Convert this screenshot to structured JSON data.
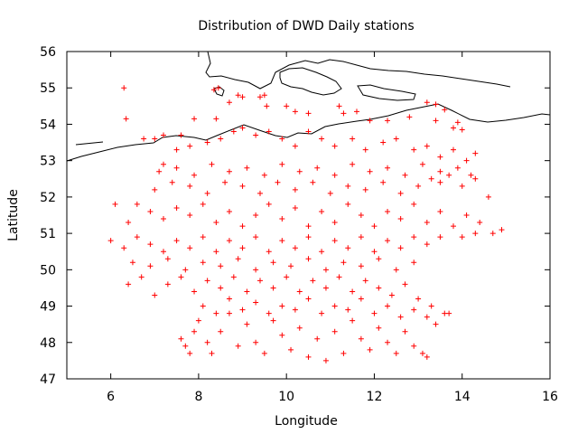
{
  "chart_data": {
    "type": "scatter",
    "title": "Distribution of DWD Daily stations",
    "xlabel": "Longitude",
    "ylabel": "Latitude",
    "xlim": [
      5,
      16
    ],
    "ylim": [
      47,
      56
    ],
    "xticks": [
      6,
      8,
      10,
      12,
      14,
      16
    ],
    "yticks": [
      47,
      48,
      49,
      50,
      51,
      52,
      53,
      54,
      55,
      56
    ],
    "marker": "plus",
    "marker_color": "#ff0000",
    "grid": false,
    "legend": "none",
    "series": [
      {
        "points": [
          [
            6.3,
            55.0
          ],
          [
            6.35,
            54.15
          ],
          [
            7.0,
            53.6
          ],
          [
            6.75,
            53.6
          ],
          [
            7.2,
            53.7
          ],
          [
            7.6,
            53.7
          ],
          [
            7.9,
            54.15
          ],
          [
            8.4,
            54.15
          ],
          [
            8.35,
            54.95
          ],
          [
            8.45,
            55.0
          ],
          [
            8.7,
            54.6
          ],
          [
            8.9,
            54.8
          ],
          [
            9.0,
            54.75
          ],
          [
            9.4,
            54.75
          ],
          [
            9.5,
            54.8
          ],
          [
            9.55,
            54.5
          ],
          [
            10.0,
            54.5
          ],
          [
            10.2,
            54.35
          ],
          [
            10.5,
            54.3
          ],
          [
            11.2,
            54.5
          ],
          [
            11.3,
            54.3
          ],
          [
            11.6,
            54.35
          ],
          [
            11.9,
            54.1
          ],
          [
            12.3,
            54.1
          ],
          [
            12.8,
            54.2
          ],
          [
            13.2,
            54.6
          ],
          [
            13.4,
            54.55
          ],
          [
            13.6,
            54.4
          ],
          [
            13.4,
            54.1
          ],
          [
            13.8,
            53.9
          ],
          [
            14.0,
            53.85
          ],
          [
            13.9,
            54.05
          ],
          [
            7.2,
            52.9
          ],
          [
            7.5,
            53.3
          ],
          [
            7.8,
            53.4
          ],
          [
            8.2,
            53.5
          ],
          [
            8.5,
            53.6
          ],
          [
            8.8,
            53.8
          ],
          [
            9.0,
            53.9
          ],
          [
            9.3,
            53.7
          ],
          [
            9.6,
            53.8
          ],
          [
            9.9,
            53.6
          ],
          [
            10.2,
            53.4
          ],
          [
            10.5,
            53.8
          ],
          [
            10.8,
            53.6
          ],
          [
            11.1,
            53.4
          ],
          [
            11.5,
            53.6
          ],
          [
            11.8,
            53.3
          ],
          [
            12.2,
            53.5
          ],
          [
            12.5,
            53.6
          ],
          [
            12.9,
            53.3
          ],
          [
            13.2,
            53.4
          ],
          [
            13.5,
            53.1
          ],
          [
            13.8,
            53.3
          ],
          [
            14.1,
            53.0
          ],
          [
            14.3,
            53.2
          ],
          [
            6.1,
            51.8
          ],
          [
            6.4,
            51.3
          ],
          [
            6.6,
            51.8
          ],
          [
            6.9,
            51.6
          ],
          [
            7.2,
            51.4
          ],
          [
            7.5,
            51.7
          ],
          [
            7.8,
            51.5
          ],
          [
            8.1,
            51.8
          ],
          [
            8.4,
            51.3
          ],
          [
            8.7,
            51.6
          ],
          [
            9.0,
            51.2
          ],
          [
            9.3,
            51.5
          ],
          [
            9.6,
            51.8
          ],
          [
            9.9,
            51.4
          ],
          [
            10.2,
            51.7
          ],
          [
            10.5,
            51.2
          ],
          [
            10.8,
            51.6
          ],
          [
            11.1,
            51.3
          ],
          [
            11.4,
            51.8
          ],
          [
            11.7,
            51.5
          ],
          [
            12.0,
            51.2
          ],
          [
            12.3,
            51.6
          ],
          [
            12.6,
            51.4
          ],
          [
            12.9,
            51.8
          ],
          [
            13.2,
            51.3
          ],
          [
            13.5,
            51.6
          ],
          [
            13.8,
            51.2
          ],
          [
            14.1,
            51.5
          ],
          [
            14.4,
            51.3
          ],
          [
            14.7,
            51.0
          ],
          [
            14.9,
            51.1
          ],
          [
            7.0,
            52.2
          ],
          [
            7.4,
            52.4
          ],
          [
            7.8,
            52.3
          ],
          [
            8.2,
            52.1
          ],
          [
            8.6,
            52.4
          ],
          [
            9.0,
            52.3
          ],
          [
            9.4,
            52.1
          ],
          [
            9.8,
            52.4
          ],
          [
            10.2,
            52.2
          ],
          [
            10.6,
            52.4
          ],
          [
            11.0,
            52.1
          ],
          [
            11.4,
            52.3
          ],
          [
            11.8,
            52.2
          ],
          [
            12.2,
            52.4
          ],
          [
            12.6,
            52.1
          ],
          [
            13.0,
            52.3
          ],
          [
            13.3,
            52.5
          ],
          [
            13.5,
            52.4
          ],
          [
            13.7,
            52.6
          ],
          [
            14.0,
            52.3
          ],
          [
            14.3,
            52.5
          ],
          [
            14.6,
            52.0
          ],
          [
            6.0,
            50.8
          ],
          [
            6.3,
            50.6
          ],
          [
            6.6,
            50.9
          ],
          [
            6.9,
            50.7
          ],
          [
            7.2,
            50.5
          ],
          [
            7.5,
            50.8
          ],
          [
            7.8,
            50.6
          ],
          [
            8.1,
            50.9
          ],
          [
            8.4,
            50.5
          ],
          [
            8.7,
            50.8
          ],
          [
            9.0,
            50.6
          ],
          [
            9.3,
            50.9
          ],
          [
            9.6,
            50.5
          ],
          [
            9.9,
            50.8
          ],
          [
            10.2,
            50.6
          ],
          [
            10.5,
            50.9
          ],
          [
            10.8,
            50.5
          ],
          [
            11.1,
            50.8
          ],
          [
            11.4,
            50.6
          ],
          [
            11.7,
            50.9
          ],
          [
            12.0,
            50.5
          ],
          [
            12.3,
            50.8
          ],
          [
            12.6,
            50.6
          ],
          [
            12.9,
            50.9
          ],
          [
            13.2,
            50.7
          ],
          [
            13.5,
            50.9
          ],
          [
            14.0,
            50.9
          ],
          [
            14.3,
            51.0
          ],
          [
            6.4,
            49.6
          ],
          [
            6.7,
            49.8
          ],
          [
            7.0,
            49.3
          ],
          [
            7.3,
            49.6
          ],
          [
            7.6,
            49.8
          ],
          [
            7.9,
            49.4
          ],
          [
            8.2,
            49.7
          ],
          [
            8.5,
            49.5
          ],
          [
            8.8,
            49.8
          ],
          [
            9.1,
            49.4
          ],
          [
            9.4,
            49.7
          ],
          [
            9.7,
            49.5
          ],
          [
            10.0,
            49.8
          ],
          [
            10.3,
            49.4
          ],
          [
            10.6,
            49.7
          ],
          [
            10.9,
            49.5
          ],
          [
            11.2,
            49.8
          ],
          [
            11.5,
            49.4
          ],
          [
            11.8,
            49.7
          ],
          [
            12.1,
            49.5
          ],
          [
            12.4,
            49.3
          ],
          [
            12.7,
            49.6
          ],
          [
            13.0,
            49.2
          ],
          [
            13.3,
            49.0
          ],
          [
            13.6,
            48.8
          ],
          [
            13.7,
            48.8
          ],
          [
            6.5,
            50.2
          ],
          [
            6.9,
            50.1
          ],
          [
            7.3,
            50.3
          ],
          [
            7.7,
            50.0
          ],
          [
            8.1,
            50.2
          ],
          [
            8.5,
            50.1
          ],
          [
            8.9,
            50.3
          ],
          [
            9.3,
            50.0
          ],
          [
            9.7,
            50.2
          ],
          [
            10.1,
            50.1
          ],
          [
            10.5,
            50.3
          ],
          [
            10.9,
            50.0
          ],
          [
            11.3,
            50.2
          ],
          [
            11.7,
            50.1
          ],
          [
            12.1,
            50.3
          ],
          [
            12.5,
            50.0
          ],
          [
            12.9,
            50.2
          ],
          [
            7.6,
            48.1
          ],
          [
            7.7,
            47.9
          ],
          [
            7.8,
            47.7
          ],
          [
            7.9,
            48.3
          ],
          [
            8.0,
            48.6
          ],
          [
            8.2,
            48.0
          ],
          [
            8.3,
            47.7
          ],
          [
            8.5,
            48.3
          ],
          [
            8.7,
            48.8
          ],
          [
            8.9,
            47.9
          ],
          [
            9.1,
            48.5
          ],
          [
            9.3,
            48.0
          ],
          [
            9.5,
            47.7
          ],
          [
            9.7,
            48.6
          ],
          [
            9.9,
            48.2
          ],
          [
            10.1,
            47.8
          ],
          [
            10.3,
            48.4
          ],
          [
            10.5,
            47.6
          ],
          [
            10.7,
            48.1
          ],
          [
            10.9,
            47.5
          ],
          [
            11.1,
            48.3
          ],
          [
            11.3,
            47.7
          ],
          [
            11.5,
            48.6
          ],
          [
            11.7,
            48.1
          ],
          [
            11.9,
            47.8
          ],
          [
            12.1,
            48.4
          ],
          [
            12.3,
            48.0
          ],
          [
            12.5,
            47.7
          ],
          [
            12.7,
            48.3
          ],
          [
            12.9,
            47.9
          ],
          [
            13.1,
            47.7
          ],
          [
            13.2,
            47.6
          ],
          [
            8.1,
            49.0
          ],
          [
            8.4,
            48.8
          ],
          [
            8.7,
            49.2
          ],
          [
            9.0,
            48.9
          ],
          [
            9.3,
            49.1
          ],
          [
            9.6,
            48.8
          ],
          [
            9.9,
            49.0
          ],
          [
            10.2,
            48.9
          ],
          [
            10.5,
            49.2
          ],
          [
            10.8,
            48.8
          ],
          [
            11.1,
            49.0
          ],
          [
            11.4,
            48.9
          ],
          [
            11.7,
            49.2
          ],
          [
            12.0,
            48.8
          ],
          [
            12.3,
            49.0
          ],
          [
            12.6,
            48.7
          ],
          [
            12.9,
            48.9
          ],
          [
            13.2,
            48.7
          ],
          [
            13.4,
            48.5
          ],
          [
            7.1,
            52.7
          ],
          [
            7.5,
            52.8
          ],
          [
            7.9,
            52.6
          ],
          [
            8.3,
            52.9
          ],
          [
            8.7,
            52.7
          ],
          [
            9.1,
            52.8
          ],
          [
            9.5,
            52.6
          ],
          [
            9.9,
            52.9
          ],
          [
            10.3,
            52.7
          ],
          [
            10.7,
            52.8
          ],
          [
            11.1,
            52.6
          ],
          [
            11.5,
            52.9
          ],
          [
            11.9,
            52.7
          ],
          [
            12.3,
            52.8
          ],
          [
            12.7,
            52.6
          ],
          [
            13.1,
            52.9
          ],
          [
            13.5,
            52.7
          ],
          [
            13.9,
            52.8
          ],
          [
            14.2,
            52.6
          ]
        ]
      }
    ]
  }
}
